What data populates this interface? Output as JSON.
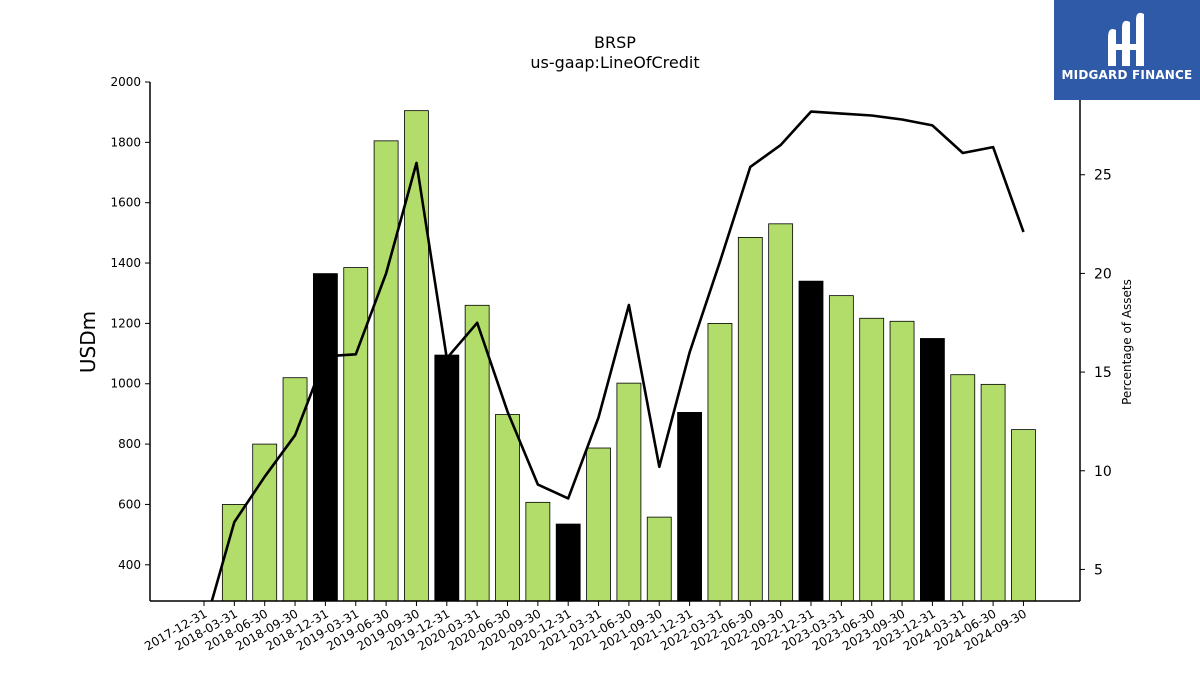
{
  "chart_data": {
    "type": "bar",
    "title": "BRSP",
    "subtitle": "us-gaap:LineOfCredit",
    "ylabel": "USDm",
    "y2label": "Percentage of Assets",
    "ylim": [
      280,
      2000
    ],
    "y2lim": [
      3.4,
      29.7
    ],
    "yticks": [
      400,
      600,
      800,
      1000,
      1200,
      1400,
      1600,
      1800,
      2000
    ],
    "y2ticks": [
      5,
      10,
      15,
      20,
      25
    ],
    "categories": [
      "2017-12-31",
      "2018-03-31",
      "2018-06-30",
      "2018-09-30",
      "2018-12-31",
      "2019-03-31",
      "2019-06-30",
      "2019-09-30",
      "2019-12-31",
      "2020-03-31",
      "2020-06-30",
      "2020-09-30",
      "2020-12-31",
      "2021-03-31",
      "2021-06-30",
      "2021-09-30",
      "2021-12-31",
      "2022-03-31",
      "2022-06-30",
      "2022-09-30",
      "2022-12-31",
      "2023-03-31",
      "2023-06-30",
      "2023-09-30",
      "2023-12-31",
      "2024-03-31",
      "2024-06-30",
      "2024-09-30"
    ],
    "series": [
      {
        "kind": "bar",
        "values": [
          null,
          600,
          800,
          1020,
          1365,
          1385,
          1805,
          1905,
          1095,
          1260,
          898,
          607,
          535,
          787,
          1002,
          558,
          905,
          1200,
          1485,
          1530,
          1340,
          1292,
          1217,
          1207,
          1150,
          1030,
          998,
          848
        ],
        "highlight": [
          false,
          false,
          false,
          false,
          true,
          false,
          false,
          false,
          true,
          false,
          false,
          false,
          true,
          false,
          false,
          false,
          true,
          false,
          false,
          false,
          true,
          false,
          false,
          false,
          true,
          false,
          false,
          false
        ]
      },
      {
        "kind": "line",
        "axis": "right",
        "values": [
          2.0,
          7.4,
          9.7,
          11.8,
          15.8,
          15.9,
          20.0,
          25.6,
          15.7,
          17.5,
          13.0,
          9.3,
          8.6,
          12.7,
          18.4,
          10.2,
          16.0,
          20.6,
          25.4,
          26.5,
          28.2,
          28.1,
          28.0,
          27.8,
          27.5,
          26.1,
          26.4,
          22.1
        ]
      }
    ],
    "colors": {
      "bar": "#b2dd6a",
      "highlight_bar": "#000000",
      "line": "#000000",
      "logo_bg": "#2e5aa8"
    },
    "grid": false,
    "legend": "none"
  },
  "logo": {
    "text": "MIDGARD FINANCE",
    "icon": "midgard-logo-icon"
  }
}
